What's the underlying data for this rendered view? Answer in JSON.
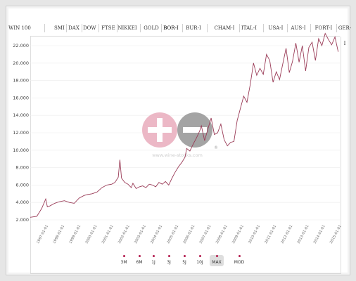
{
  "tabs": [
    {
      "label": "WIN 100"
    },
    {
      "label": "SMI"
    },
    {
      "label": "DAX"
    },
    {
      "label": "DOW"
    },
    {
      "label": "FTSE"
    },
    {
      "label": "NIKKEI"
    },
    {
      "label": "GOLD"
    },
    {
      "label": "BOR-I"
    },
    {
      "label": "BUR-I"
    },
    {
      "label": "CHAM-I"
    },
    {
      "label": "ITAL-I"
    },
    {
      "label": "USA-I"
    },
    {
      "label": "AUS-I"
    },
    {
      "label": "FORT-I"
    },
    {
      "label": "GER-I"
    }
  ],
  "active_tab": "BOR-I",
  "ranges": [
    {
      "label": "3M"
    },
    {
      "label": "6M"
    },
    {
      "label": "1J"
    },
    {
      "label": "3J"
    },
    {
      "label": "5J"
    },
    {
      "label": "10J"
    },
    {
      "label": "MAX"
    },
    {
      "label": "MOD"
    }
  ],
  "active_range": "MAX",
  "watermark": "www.wine-stocks.com",
  "colors": {
    "line": "#9a3b57",
    "logo_pink": "#e9a3b6",
    "logo_gray": "#8d8d8d",
    "grid": "#ececec"
  },
  "chart_data": {
    "type": "line",
    "ylim": [
      2000,
      24000
    ],
    "yticks": [
      2000,
      4000,
      6000,
      8000,
      10000,
      12000,
      14000,
      16000,
      18000,
      20000,
      22000
    ],
    "ytick_labels": [
      "2.000",
      "4.000",
      "6.000",
      "8.000",
      "10.000",
      "12.000",
      "14.000",
      "16.000",
      "18.000",
      "20.000",
      "22.000"
    ],
    "xlim": [
      1996.5,
      2015.5
    ],
    "xtick_labels": [
      "1997-01-01",
      "1998-01-01",
      "1999-01-01",
      "2000-01-01",
      "2001-01-01",
      "2002-01-01",
      "2003-01-01",
      "2004-01-01",
      "2005-01-01",
      "2006-01-01",
      "2007-01-01",
      "2008-01-01",
      "2009-01-01",
      "2010-01-01",
      "2011-01-01",
      "2012-01-01",
      "2013-01-01",
      "2014-01-01",
      "2015-01-01"
    ],
    "series": [
      {
        "x": [
          1996.5,
          1996.9,
          1997.2,
          1997.45,
          1997.55,
          1997.7,
          1998.0,
          1998.3,
          1998.6,
          1998.9,
          1999.2,
          1999.5,
          1999.8,
          2000.0,
          2000.3,
          2000.6,
          2000.9,
          2001.2,
          2001.5,
          2001.7,
          2001.9,
          2002.0,
          2002.1,
          2002.3,
          2002.5,
          2002.7,
          2002.8,
          2003.0,
          2003.2,
          2003.4,
          2003.6,
          2003.8,
          2004.0,
          2004.2,
          2004.4,
          2004.6,
          2004.8,
          2005.0,
          2005.2,
          2005.4,
          2005.6,
          2005.8,
          2006.0,
          2006.1,
          2006.3,
          2006.5,
          2006.7,
          2006.9,
          2007.0,
          2007.2,
          2007.4,
          2007.6,
          2007.8,
          2008.0,
          2008.2,
          2008.4,
          2008.6,
          2008.8,
          2009.0,
          2009.2,
          2009.4,
          2009.6,
          2009.8,
          2010.0,
          2010.2,
          2010.4,
          2010.6,
          2010.8,
          2011.0,
          2011.2,
          2011.4,
          2011.6,
          2011.8,
          2012.0,
          2012.2,
          2012.4,
          2012.6,
          2012.8,
          2013.0,
          2013.2,
          2013.4,
          2013.6,
          2013.8,
          2014.0,
          2014.2,
          2014.4,
          2014.6,
          2014.8,
          2015.0,
          2015.2,
          2015.4
        ],
        "y": [
          2300,
          2400,
          3300,
          4400,
          3500,
          3600,
          3900,
          4100,
          4200,
          4000,
          3900,
          4500,
          4800,
          4900,
          5000,
          5200,
          5700,
          6000,
          6100,
          6300,
          6900,
          8900,
          6800,
          6300,
          6100,
          5700,
          6200,
          5600,
          5800,
          5900,
          5700,
          6100,
          6000,
          5800,
          6300,
          6100,
          6400,
          6000,
          6800,
          7500,
          8100,
          8600,
          9200,
          10200,
          9900,
          10700,
          11400,
          12200,
          12800,
          11100,
          12400,
          13700,
          11800,
          12000,
          13000,
          11200,
          10500,
          10900,
          11000,
          13400,
          14800,
          16200,
          15500,
          17500,
          20000,
          18600,
          19400,
          18700,
          21000,
          20300,
          17800,
          19000,
          18100,
          19900,
          21700,
          18900,
          20200,
          22300,
          20100,
          22000,
          19100,
          21800,
          22400,
          20300,
          22800,
          22000,
          23400,
          22700,
          22100,
          23000,
          21300
        ]
      }
    ]
  }
}
